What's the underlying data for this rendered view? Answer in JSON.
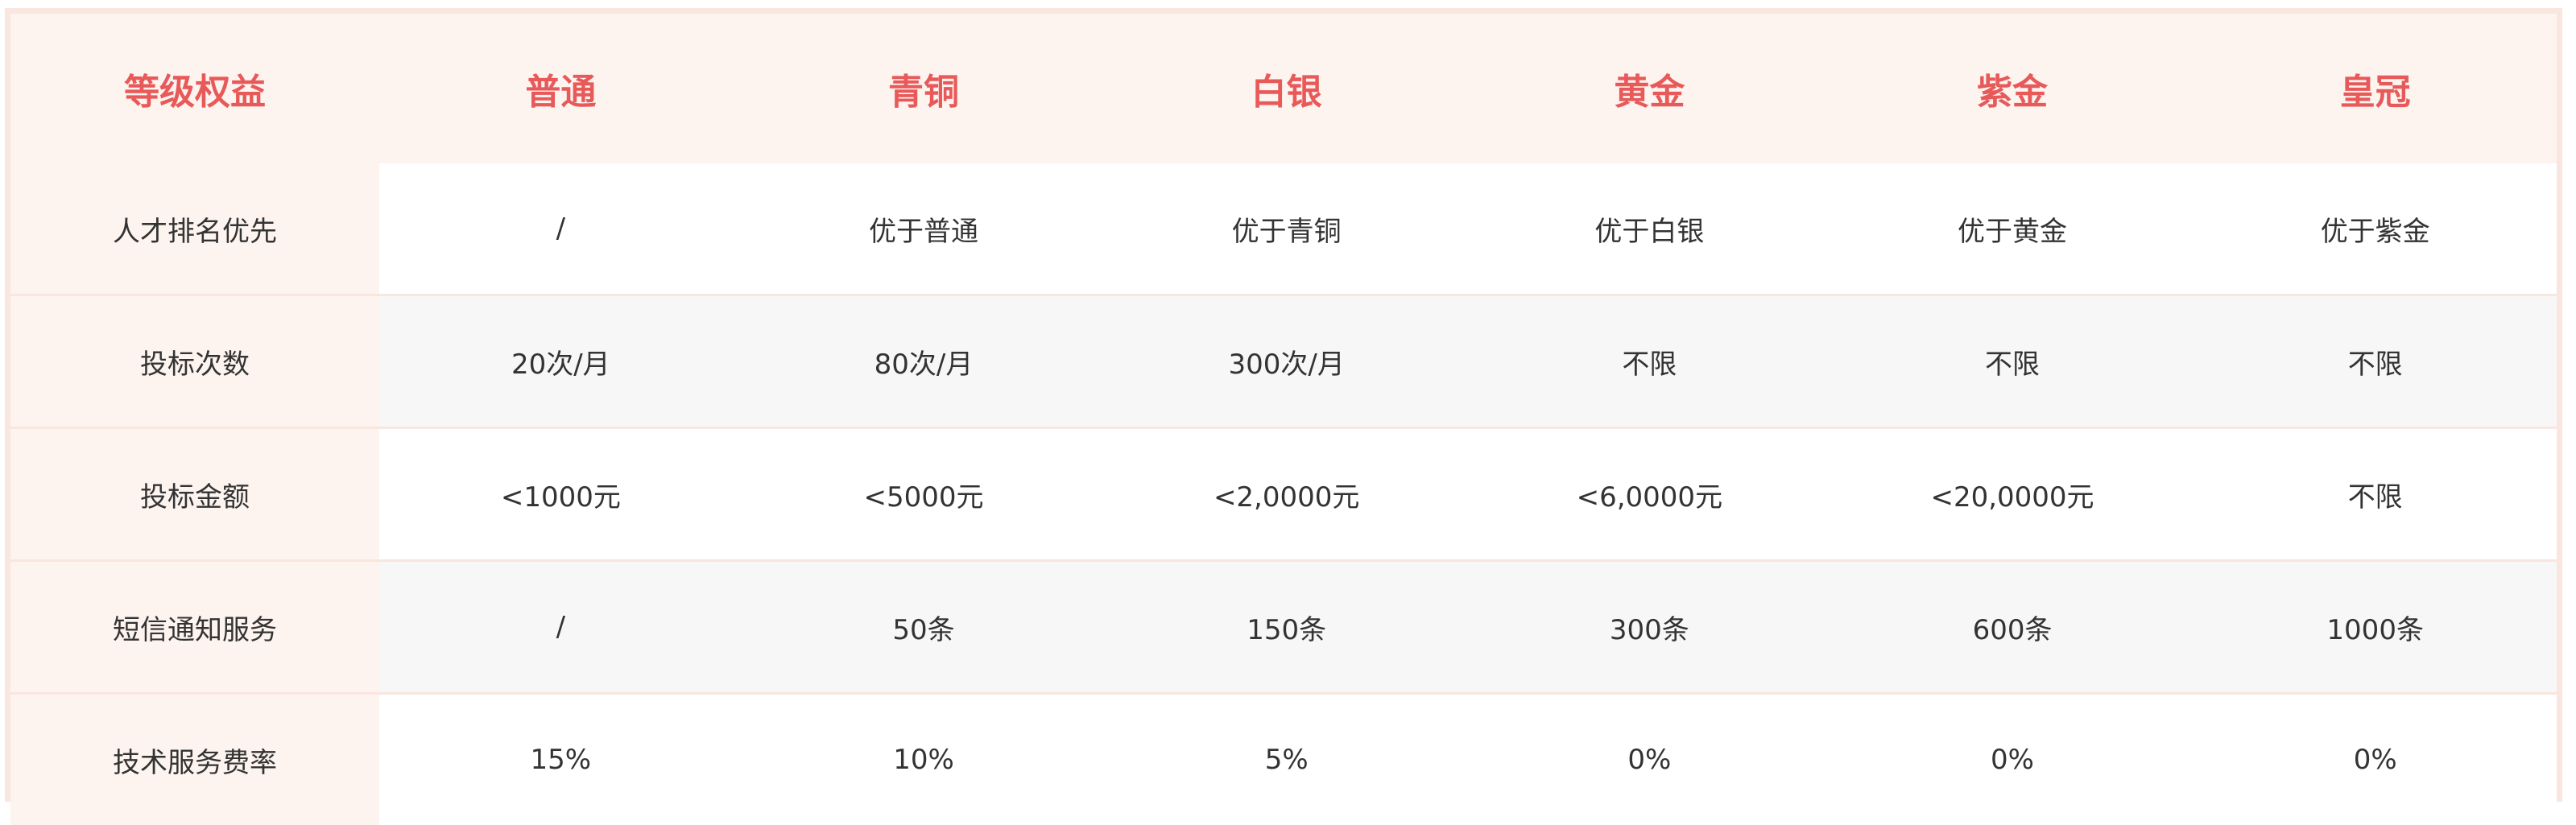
{
  "header": {
    "label": "等级权益",
    "levels": [
      "普通",
      "青铜",
      "白银",
      "黄金",
      "紫金",
      "皇冠"
    ]
  },
  "rows": [
    {
      "label": "人才排名优先",
      "values": [
        "/",
        "优于普通",
        "优于青铜",
        "优于白银",
        "优于黄金",
        "优于紫金"
      ]
    },
    {
      "label": "投标次数",
      "values": [
        "20次/月",
        "80次/月",
        "300次/月",
        "不限",
        "不限",
        "不限"
      ]
    },
    {
      "label": "投标金额",
      "values": [
        "<1000元",
        "<5000元",
        "<2,0000元",
        "<6,0000元",
        "<20,0000元",
        "不限"
      ]
    },
    {
      "label": "短信通知服务",
      "values": [
        "/",
        "50条",
        "150条",
        "300条",
        "600条",
        "1000条"
      ]
    },
    {
      "label": "技术服务费率",
      "values": [
        "15%",
        "10%",
        "5%",
        "0%",
        "0%",
        "0%"
      ]
    }
  ],
  "colors": {
    "accent": "#e85a5a",
    "header_bg": "#fdf4f0",
    "border": "#f8e6df",
    "stripe": "#f7f7f7",
    "text": "#333333"
  }
}
